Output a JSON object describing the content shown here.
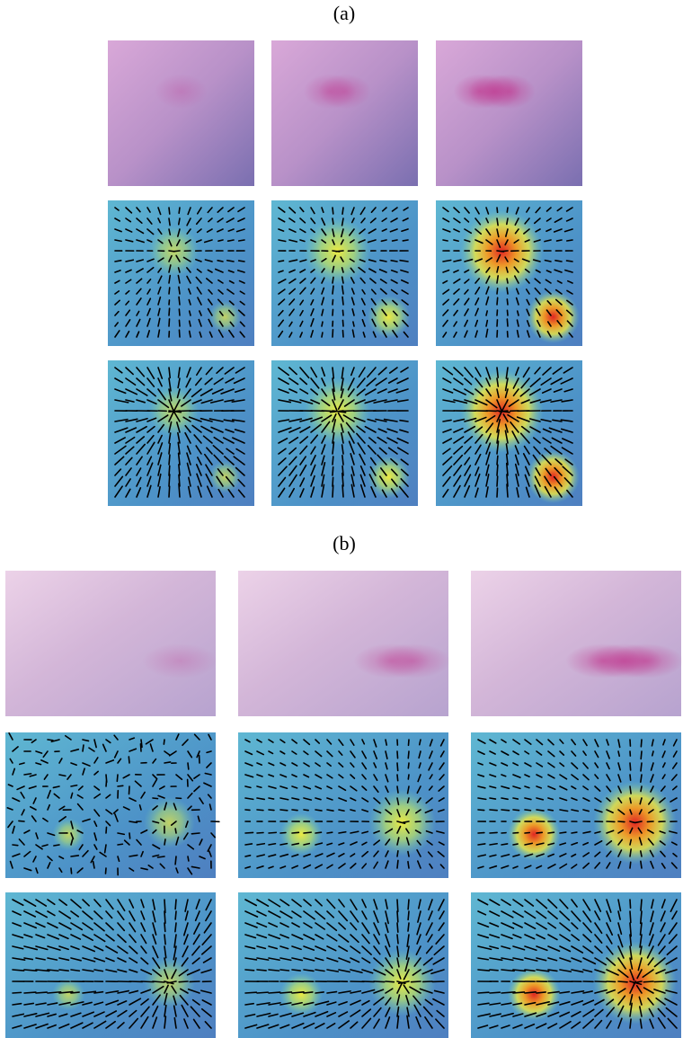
{
  "figure": {
    "labels": [
      "(a)",
      "(b)"
    ]
  }
}
